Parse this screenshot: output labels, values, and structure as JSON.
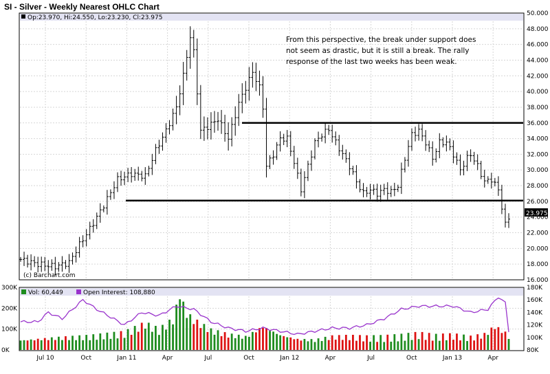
{
  "title": "SI - Silver - Weekly Nearest OHLC Chart",
  "info_line": "Op:23.970, Hi:24.550, Lo:23.230, Cl:23.975",
  "copyright": "(c) Barchart.com",
  "annotation": [
    "From this perspective, the break under support does",
    "not seem as drastic, but it is still a break.  The rally",
    "response of the last two weeks has been weak."
  ],
  "colors": {
    "up_volume": "#1e8c1e",
    "down_volume": "#dd1111",
    "open_interest": "#9933cc",
    "header_band": "#e3e3f3"
  },
  "last_price_label": "23.975",
  "volume_legend": {
    "vol": "Vol: 60,449",
    "oi": "Open Interest: 108,880"
  },
  "chart_data": [
    {
      "type": "ohlc",
      "title": "SI - Silver - Weekly Nearest OHLC Chart",
      "x_labels": [
        "Jul 10",
        "Oct",
        "Jan 11",
        "Apr",
        "Jul",
        "Oct",
        "Jan 12",
        "Apr",
        "Jul",
        "Oct",
        "Jan 13",
        "Apr"
      ],
      "ylim": [
        16,
        50
      ],
      "y_ticks": [
        "16.000",
        "18.000",
        "20.000",
        "22.000",
        "24.000",
        "26.000",
        "28.000",
        "30.000",
        "32.000",
        "34.000",
        "36.000",
        "38.000",
        "40.000",
        "42.000",
        "44.000",
        "46.000",
        "48.000",
        "50.000"
      ],
      "horizontal_lines": [
        36.0,
        26.1
      ],
      "anchors": [
        [
          0,
          18.6
        ],
        [
          5,
          18.0
        ],
        [
          10,
          17.7
        ],
        [
          14,
          18.2
        ],
        [
          17,
          20.5
        ],
        [
          20,
          22.5
        ],
        [
          24,
          25.5
        ],
        [
          28,
          28.8
        ],
        [
          32,
          29.5
        ],
        [
          36,
          29.2
        ],
        [
          39,
          32.5
        ],
        [
          42,
          35.0
        ],
        [
          45,
          38.0
        ],
        [
          47,
          42.0
        ],
        [
          49,
          47.0
        ],
        [
          50,
          45.0
        ],
        [
          52,
          35.0
        ],
        [
          54,
          35.5
        ],
        [
          57,
          36.5
        ],
        [
          60,
          34.0
        ],
        [
          63,
          38.5
        ],
        [
          65,
          40.5
        ],
        [
          67,
          42.5
        ],
        [
          69,
          40.5
        ],
        [
          70,
          38.0
        ],
        [
          71,
          30.5
        ],
        [
          73,
          32.0
        ],
        [
          75,
          34.0
        ],
        [
          77,
          34.0
        ],
        [
          79,
          31.0
        ],
        [
          81,
          27.5
        ],
        [
          83,
          30.5
        ],
        [
          85,
          33.5
        ],
        [
          87,
          34.5
        ],
        [
          89,
          35.2
        ],
        [
          91,
          33.5
        ],
        [
          93,
          32.0
        ],
        [
          95,
          30.5
        ],
        [
          97,
          28.5
        ],
        [
          99,
          27.0
        ],
        [
          101,
          27.5
        ],
        [
          103,
          27.0
        ],
        [
          105,
          27.5
        ],
        [
          107,
          27.2
        ],
        [
          109,
          28.0
        ],
        [
          111,
          31.5
        ],
        [
          113,
          34.5
        ],
        [
          115,
          35.0
        ],
        [
          117,
          33.5
        ],
        [
          119,
          31.5
        ],
        [
          121,
          33.5
        ],
        [
          123,
          33.5
        ],
        [
          125,
          32.0
        ],
        [
          127,
          30.0
        ],
        [
          129,
          31.5
        ],
        [
          130,
          32.0
        ],
        [
          132,
          30.5
        ],
        [
          134,
          28.5
        ],
        [
          136,
          28.8
        ],
        [
          138,
          27.5
        ],
        [
          140,
          23.0
        ],
        [
          141,
          23.97
        ]
      ],
      "n_weeks": 142
    },
    {
      "type": "bar",
      "title": "Volume",
      "ylim": [
        0,
        300000
      ],
      "y_ticks": [
        "0K",
        "100K",
        "200K",
        "300K"
      ],
      "open_interest_ylim": [
        80000,
        180000
      ],
      "open_interest_ticks": [
        "80K",
        "100K",
        "120K",
        "140K",
        "160K",
        "180K"
      ],
      "anchors": [
        [
          0,
          45
        ],
        [
          10,
          55
        ],
        [
          20,
          60
        ],
        [
          30,
          75
        ],
        [
          36,
          120
        ],
        [
          40,
          90
        ],
        [
          44,
          140
        ],
        [
          46,
          260
        ],
        [
          48,
          170
        ],
        [
          50,
          140
        ],
        [
          55,
          90
        ],
        [
          60,
          70
        ],
        [
          65,
          60
        ],
        [
          70,
          110
        ],
        [
          75,
          70
        ],
        [
          80,
          50
        ],
        [
          85,
          45
        ],
        [
          90,
          60
        ],
        [
          95,
          60
        ],
        [
          100,
          55
        ],
        [
          105,
          55
        ],
        [
          110,
          60
        ],
        [
          115,
          70
        ],
        [
          120,
          60
        ],
        [
          125,
          65
        ],
        [
          130,
          55
        ],
        [
          134,
          70
        ],
        [
          137,
          110
        ],
        [
          140,
          80
        ],
        [
          141,
          60
        ]
      ],
      "open_interest_anchors": [
        [
          0,
          125
        ],
        [
          5,
          125
        ],
        [
          8,
          140
        ],
        [
          12,
          130
        ],
        [
          18,
          160
        ],
        [
          22,
          145
        ],
        [
          30,
          120
        ],
        [
          35,
          140
        ],
        [
          40,
          135
        ],
        [
          45,
          150
        ],
        [
          50,
          145
        ],
        [
          55,
          125
        ],
        [
          60,
          115
        ],
        [
          65,
          110
        ],
        [
          70,
          115
        ],
        [
          75,
          110
        ],
        [
          80,
          105
        ],
        [
          85,
          110
        ],
        [
          90,
          115
        ],
        [
          95,
          115
        ],
        [
          100,
          120
        ],
        [
          105,
          130
        ],
        [
          110,
          145
        ],
        [
          115,
          150
        ],
        [
          120,
          150
        ],
        [
          125,
          150
        ],
        [
          130,
          140
        ],
        [
          135,
          145
        ],
        [
          138,
          165
        ],
        [
          140,
          155
        ],
        [
          141,
          110
        ]
      ]
    }
  ]
}
